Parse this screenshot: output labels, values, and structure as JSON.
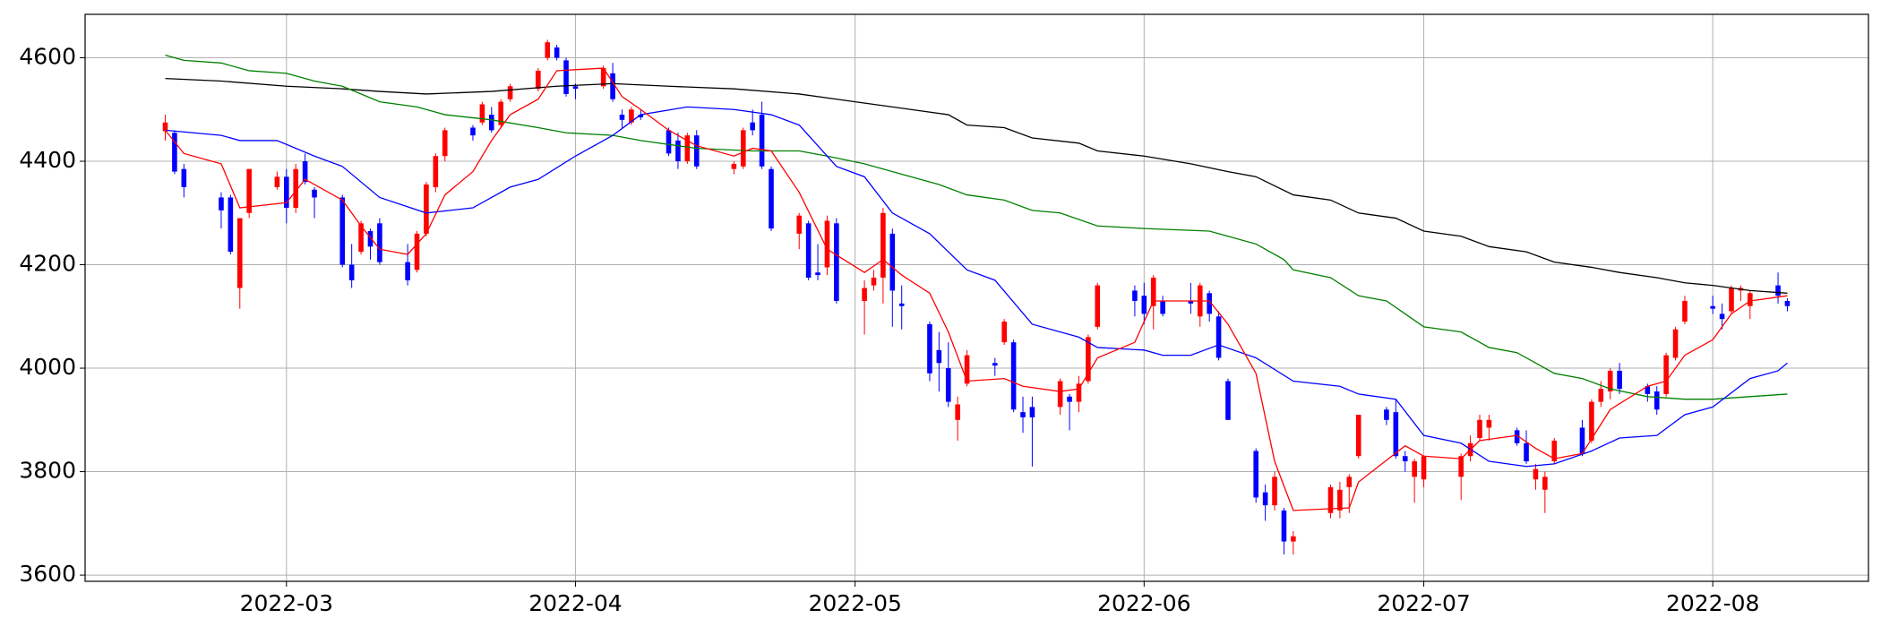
{
  "chart_data": {
    "type": "candlestick",
    "up_color": "#ff0000",
    "down_color": "#0000ff",
    "grid": true,
    "xlim": [
      19030.4,
      19221.7
    ],
    "ylim": [
      3588,
      4684
    ],
    "yticks": [
      3600,
      3800,
      4000,
      4200,
      4400,
      4600
    ],
    "xticks": [
      {
        "value": 19052,
        "label": "2022-03"
      },
      {
        "value": 19083,
        "label": "2022-04"
      },
      {
        "value": 19113,
        "label": "2022-05"
      },
      {
        "value": 19144,
        "label": "2022-06"
      },
      {
        "value": 19174,
        "label": "2022-07"
      },
      {
        "value": 19205,
        "label": "2022-08"
      }
    ],
    "x": [
      19039,
      19040,
      19041,
      19045,
      19046,
      19047,
      19048,
      19051,
      19052,
      19053,
      19054,
      19055,
      19058,
      19059,
      19060,
      19061,
      19062,
      19065,
      19066,
      19067,
      19068,
      19069,
      19072,
      19073,
      19074,
      19075,
      19076,
      19079,
      19080,
      19081,
      19082,
      19083,
      19086,
      19087,
      19088,
      19089,
      19090,
      19093,
      19094,
      19095,
      19096,
      19100,
      19101,
      19102,
      19103,
      19104,
      19107,
      19108,
      19109,
      19110,
      19111,
      19114,
      19115,
      19116,
      19117,
      19118,
      19121,
      19122,
      19123,
      19124,
      19125,
      19128,
      19129,
      19130,
      19131,
      19132,
      19135,
      19136,
      19137,
      19138,
      19139,
      19143,
      19144,
      19145,
      19146,
      19149,
      19150,
      19151,
      19152,
      19153,
      19156,
      19157,
      19158,
      19159,
      19160,
      19164,
      19165,
      19166,
      19167,
      19170,
      19171,
      19172,
      19173,
      19174,
      19178,
      19179,
      19180,
      19181,
      19184,
      19185,
      19186,
      19187,
      19188,
      19191,
      19192,
      19193,
      19194,
      19195,
      19198,
      19199,
      19200,
      19201,
      19202,
      19205,
      19206,
      19207,
      19208,
      19209,
      19212,
      19213
    ],
    "open": [
      4458,
      4455,
      4385,
      4330,
      4330,
      4155,
      4300,
      4350,
      4370,
      4310,
      4400,
      4345,
      4330,
      4200,
      4225,
      4265,
      4280,
      4205,
      4190,
      4260,
      4350,
      4410,
      4465,
      4475,
      4490,
      4470,
      4520,
      4540,
      4600,
      4620,
      4595,
      4545,
      4545,
      4570,
      4490,
      4475,
      4490,
      4460,
      4440,
      4400,
      4450,
      4385,
      4390,
      4475,
      4490,
      4385,
      4260,
      4280,
      4185,
      4195,
      4280,
      4130,
      4160,
      4175,
      4260,
      4125,
      4085,
      4035,
      4000,
      3900,
      3970,
      4010,
      4050,
      4050,
      3915,
      3925,
      3925,
      3945,
      3935,
      3975,
      4080,
      4150,
      4140,
      4120,
      4130,
      4130,
      4100,
      4145,
      4100,
      3975,
      3840,
      3760,
      3735,
      3725,
      3665,
      3720,
      3725,
      3770,
      3830,
      3920,
      3915,
      3830,
      3790,
      3785,
      3790,
      3830,
      3865,
      3885,
      3880,
      3855,
      3785,
      3765,
      3820,
      3885,
      3860,
      3935,
      3955,
      3995,
      3965,
      3955,
      3950,
      4020,
      4090,
      4120,
      4105,
      4110,
      4150,
      4120,
      4160,
      4130
    ],
    "high": [
      4490,
      4460,
      4395,
      4340,
      4335,
      4290,
      4385,
      4380,
      4385,
      4395,
      4415,
      4350,
      4335,
      4240,
      4285,
      4270,
      4290,
      4240,
      4265,
      4360,
      4415,
      4465,
      4470,
      4515,
      4505,
      4520,
      4550,
      4580,
      4635,
      4625,
      4600,
      4550,
      4585,
      4590,
      4500,
      4505,
      4500,
      4465,
      4455,
      4455,
      4460,
      4400,
      4465,
      4500,
      4515,
      4390,
      4300,
      4285,
      4240,
      4295,
      4290,
      4170,
      4190,
      4310,
      4270,
      4160,
      4090,
      4070,
      4050,
      3945,
      4035,
      4020,
      4095,
      4055,
      3945,
      3945,
      3980,
      3950,
      3985,
      4065,
      4165,
      4160,
      4165,
      4180,
      4140,
      4165,
      4165,
      4150,
      4110,
      3980,
      3845,
      3775,
      3800,
      3730,
      3685,
      3775,
      3780,
      3795,
      3910,
      3925,
      3940,
      3840,
      3825,
      3830,
      3835,
      3870,
      3910,
      3910,
      3885,
      3880,
      3815,
      3800,
      3865,
      3900,
      3940,
      3975,
      4000,
      4010,
      3970,
      3965,
      4030,
      4080,
      4140,
      4140,
      4125,
      4160,
      4160,
      4150,
      4185,
      4135
    ],
    "low": [
      4440,
      4375,
      4330,
      4270,
      4220,
      4115,
      4290,
      4345,
      4280,
      4300,
      4355,
      4290,
      4195,
      4155,
      4220,
      4210,
      4200,
      4160,
      4185,
      4255,
      4340,
      4400,
      4440,
      4470,
      4455,
      4465,
      4515,
      4535,
      4595,
      4595,
      4525,
      4520,
      4540,
      4515,
      4465,
      4470,
      4480,
      4410,
      4385,
      4395,
      4385,
      4375,
      4385,
      4450,
      4385,
      4265,
      4230,
      4170,
      4170,
      4180,
      4125,
      4065,
      4150,
      4125,
      4080,
      4075,
      3975,
      3955,
      3925,
      3860,
      3965,
      3985,
      4045,
      3915,
      3875,
      3810,
      3910,
      3880,
      3915,
      3970,
      4075,
      4100,
      4085,
      4075,
      4100,
      4105,
      4080,
      4090,
      4015,
      3900,
      3740,
      3705,
      3725,
      3640,
      3640,
      3710,
      3710,
      3720,
      3825,
      3890,
      3825,
      3800,
      3740,
      3770,
      3745,
      3820,
      3860,
      3860,
      3850,
      3815,
      3765,
      3720,
      3815,
      3830,
      3855,
      3925,
      3940,
      3950,
      3935,
      3910,
      3945,
      4015,
      4085,
      4105,
      4075,
      4105,
      4130,
      4095,
      4125,
      4110
    ],
    "close": [
      4475,
      4380,
      4350,
      4305,
      4225,
      4290,
      4385,
      4370,
      4310,
      4385,
      4360,
      4330,
      4200,
      4170,
      4280,
      4235,
      4205,
      4170,
      4260,
      4355,
      4410,
      4460,
      4450,
      4510,
      4460,
      4515,
      4545,
      4575,
      4630,
      4600,
      4530,
      4540,
      4580,
      4520,
      4480,
      4500,
      4485,
      4415,
      4400,
      4450,
      4390,
      4395,
      4460,
      4460,
      4390,
      4270,
      4295,
      4175,
      4180,
      4285,
      4130,
      4155,
      4175,
      4300,
      4150,
      4120,
      3990,
      4010,
      3935,
      3930,
      4025,
      4005,
      4090,
      3920,
      3905,
      3905,
      3975,
      3935,
      3970,
      4060,
      4160,
      4130,
      4105,
      4175,
      4105,
      4125,
      4160,
      4105,
      4020,
      3900,
      3750,
      3735,
      3790,
      3665,
      3675,
      3770,
      3765,
      3790,
      3910,
      3900,
      3830,
      3820,
      3820,
      3830,
      3830,
      3855,
      3900,
      3900,
      3855,
      3820,
      3805,
      3790,
      3860,
      3835,
      3935,
      3960,
      3995,
      3960,
      3950,
      3920,
      4025,
      4075,
      4130,
      4115,
      4095,
      4155,
      4155,
      4145,
      4140,
      4120
    ],
    "lines": [
      {
        "color": "#000000",
        "x": [
          19039,
          19045,
          19052,
          19058,
          19062,
          19067,
          19074,
          19081,
          19087,
          19093,
          19100,
          19107,
          19111,
          19117,
          19123,
          19125,
          19129,
          19132,
          19137,
          19139,
          19144,
          19149,
          19153,
          19156,
          19160,
          19164,
          19167,
          19171,
          19174,
          19178,
          19181,
          19185,
          19188,
          19192,
          19195,
          19199,
          19202,
          19205,
          19209,
          19213
        ],
        "values": [
          4560,
          4555,
          4545,
          4540,
          4535,
          4530,
          4535,
          4545,
          4550,
          4545,
          4540,
          4530,
          4520,
          4505,
          4490,
          4470,
          4465,
          4445,
          4435,
          4420,
          4410,
          4395,
          4380,
          4370,
          4335,
          4325,
          4300,
          4290,
          4265,
          4255,
          4235,
          4225,
          4205,
          4195,
          4185,
          4175,
          4165,
          4160,
          4150,
          4145
        ]
      },
      {
        "color": "#008000",
        "x": [
          19039,
          19041,
          19045,
          19048,
          19052,
          19055,
          19058,
          19062,
          19066,
          19069,
          19074,
          19079,
          19082,
          19087,
          19090,
          19096,
          19102,
          19107,
          19110,
          19114,
          19118,
          19122,
          19125,
          19129,
          19132,
          19135,
          19139,
          19144,
          19151,
          19153,
          19156,
          19159,
          19160,
          19164,
          19167,
          19170,
          19174,
          19178,
          19181,
          19184,
          19188,
          19191,
          19194,
          19198,
          19202,
          19205,
          19209,
          19213
        ],
        "values": [
          4605,
          4595,
          4590,
          4575,
          4570,
          4555,
          4545,
          4515,
          4505,
          4490,
          4480,
          4465,
          4455,
          4450,
          4440,
          4425,
          4420,
          4420,
          4410,
          4395,
          4375,
          4355,
          4335,
          4325,
          4305,
          4300,
          4275,
          4270,
          4265,
          4255,
          4240,
          4210,
          4190,
          4175,
          4140,
          4130,
          4080,
          4070,
          4040,
          4030,
          3990,
          3980,
          3960,
          3945,
          3940,
          3940,
          3945,
          3950
        ]
      },
      {
        "color": "#0000ff",
        "x": [
          19039,
          19045,
          19047,
          19051,
          19055,
          19058,
          19062,
          19067,
          19072,
          19076,
          19079,
          19083,
          19087,
          19090,
          19095,
          19100,
          19104,
          19107,
          19111,
          19114,
          19117,
          19121,
          19125,
          19128,
          19132,
          19137,
          19139,
          19144,
          19146,
          19149,
          19152,
          19156,
          19160,
          19165,
          19167,
          19171,
          19174,
          19178,
          19181,
          19185,
          19188,
          19192,
          19195,
          19199,
          19202,
          19205,
          19209,
          19212,
          19213
        ],
        "values": [
          4460,
          4450,
          4440,
          4440,
          4410,
          4390,
          4330,
          4300,
          4310,
          4350,
          4365,
          4410,
          4450,
          4490,
          4505,
          4500,
          4490,
          4470,
          4390,
          4370,
          4300,
          4260,
          4190,
          4170,
          4085,
          4060,
          4040,
          4035,
          4025,
          4025,
          4045,
          4020,
          3975,
          3965,
          3950,
          3940,
          3870,
          3855,
          3820,
          3810,
          3815,
          3840,
          3865,
          3870,
          3910,
          3925,
          3980,
          3995,
          4010
        ]
      },
      {
        "color": "#ff0000",
        "x": [
          19039,
          19041,
          19045,
          19047,
          19052,
          19054,
          19058,
          19060,
          19062,
          19065,
          19067,
          19069,
          19072,
          19074,
          19076,
          19079,
          19081,
          19086,
          19088,
          19090,
          19093,
          19096,
          19100,
          19102,
          19104,
          19107,
          19110,
          19114,
          19116,
          19118,
          19121,
          19123,
          19125,
          19129,
          19131,
          19135,
          19137,
          19139,
          19143,
          19145,
          19149,
          19151,
          19153,
          19156,
          19158,
          19160,
          19166,
          19167,
          19172,
          19174,
          19178,
          19180,
          19184,
          19186,
          19188,
          19191,
          19194,
          19198,
          19200,
          19202,
          19205,
          19207,
          19209,
          19213
        ],
        "values": [
          4460,
          4415,
          4395,
          4310,
          4320,
          4365,
          4325,
          4275,
          4230,
          4220,
          4260,
          4335,
          4380,
          4440,
          4490,
          4520,
          4575,
          4580,
          4525,
          4500,
          4460,
          4430,
          4410,
          4425,
          4420,
          4340,
          4230,
          4185,
          4210,
          4180,
          4145,
          4070,
          3975,
          3980,
          3965,
          3955,
          3960,
          4020,
          4050,
          4130,
          4130,
          4130,
          4085,
          3990,
          3820,
          3725,
          3730,
          3780,
          3850,
          3830,
          3825,
          3860,
          3870,
          3845,
          3825,
          3835,
          3920,
          3965,
          3975,
          4025,
          4055,
          4105,
          4130,
          4140
        ]
      }
    ]
  }
}
